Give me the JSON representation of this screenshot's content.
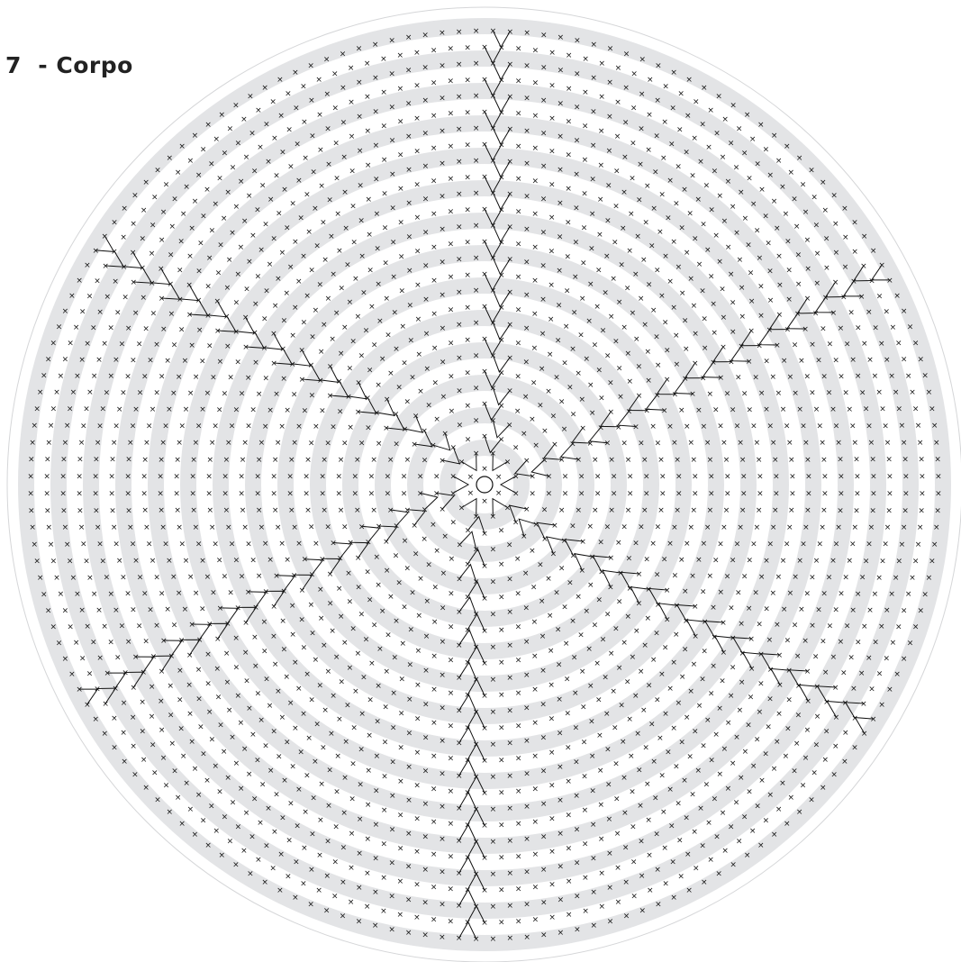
{
  "diagram": {
    "title": "7  - Corpo",
    "center_symbol": "magic-ring",
    "stitch_symbols": {
      "single_crochet": "×",
      "increase": "V (two stitches joined)"
    },
    "colors": {
      "ring_band": "#e3e4e6",
      "background": "#ffffff",
      "stitch": "#111111",
      "outer_circle": "#d5d6d8"
    },
    "rounds": 28,
    "rays": 6,
    "shaded_bands": 14
  }
}
